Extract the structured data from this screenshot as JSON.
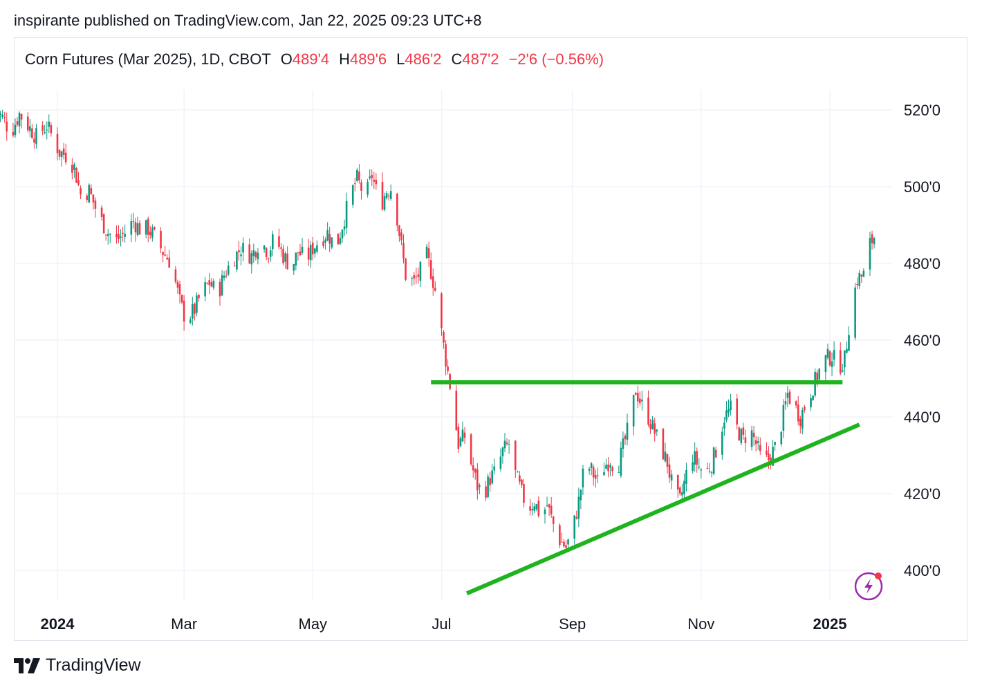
{
  "publisher_line": "inspirante published on TradingView.com, Jan 22, 2025 09:23 UTC+8",
  "legend": {
    "symbol": "Corn Futures (Mar 2025), 1D, CBOT",
    "open_label": "O",
    "open": "489'4",
    "high_label": "H",
    "high": "489'6",
    "low_label": "L",
    "low": "486'2",
    "close_label": "C",
    "close": "487'2",
    "change": "−2'6 (−0.56%)"
  },
  "colors": {
    "up": "#089981",
    "down": "#f23645",
    "trendline": "#1fb41f",
    "grid": "#f0f3fa",
    "axis_text": "#131722",
    "badge": "#9c27b0",
    "badge_dot": "#f23645"
  },
  "footer": {
    "brand": "TradingView",
    "logo_icon": "tradingview-logo-icon"
  },
  "badge_icon": "lightning-icon",
  "chart_data": {
    "type": "candlestick",
    "price_axis_labels": [
      "520'0",
      "500'0",
      "480'0",
      "460'0",
      "440'0",
      "420'0",
      "400'0"
    ],
    "price_axis_values": [
      520,
      500,
      480,
      460,
      440,
      420,
      400
    ],
    "time_axis_labels": [
      {
        "label": "2024",
        "date": "2024-01-01",
        "bold": true
      },
      {
        "label": "Mar",
        "date": "2024-03-01",
        "bold": false
      },
      {
        "label": "May",
        "date": "2024-05-01",
        "bold": false
      },
      {
        "label": "Jul",
        "date": "2024-07-01",
        "bold": false
      },
      {
        "label": "Sep",
        "date": "2024-09-01",
        "bold": false
      },
      {
        "label": "Nov",
        "date": "2024-11-01",
        "bold": false
      },
      {
        "label": "2025",
        "date": "2025-01-01",
        "bold": true
      }
    ],
    "ylim": [
      388,
      530
    ],
    "xlim": [
      "2023-12-01",
      "2025-02-10"
    ],
    "path": [
      [
        "2023-12-01",
        521
      ],
      [
        "2023-12-06",
        518
      ],
      [
        "2023-12-10",
        514
      ],
      [
        "2023-12-14",
        519
      ],
      [
        "2023-12-18",
        516
      ],
      [
        "2023-12-22",
        513
      ],
      [
        "2023-12-27",
        516
      ],
      [
        "2024-01-02",
        509
      ],
      [
        "2024-01-06",
        508
      ],
      [
        "2024-01-09",
        505
      ],
      [
        "2024-01-12",
        498
      ],
      [
        "2024-01-16",
        499
      ],
      [
        "2024-01-20",
        493
      ],
      [
        "2024-01-25",
        488
      ],
      [
        "2024-01-29",
        486
      ],
      [
        "2024-02-02",
        488
      ],
      [
        "2024-02-06",
        491
      ],
      [
        "2024-02-09",
        489
      ],
      [
        "2024-02-13",
        489
      ],
      [
        "2024-02-16",
        487
      ],
      [
        "2024-02-20",
        483
      ],
      [
        "2024-02-24",
        480
      ],
      [
        "2024-02-28",
        470
      ],
      [
        "2024-03-02",
        465
      ],
      [
        "2024-03-06",
        468
      ],
      [
        "2024-03-09",
        472
      ],
      [
        "2024-03-13",
        475
      ],
      [
        "2024-03-17",
        472
      ],
      [
        "2024-03-20",
        477
      ],
      [
        "2024-03-24",
        481
      ],
      [
        "2024-03-28",
        484
      ],
      [
        "2024-04-02",
        482
      ],
      [
        "2024-04-06",
        486
      ],
      [
        "2024-04-10",
        483
      ],
      [
        "2024-04-13",
        487
      ],
      [
        "2024-04-17",
        482
      ],
      [
        "2024-04-21",
        479
      ],
      [
        "2024-04-24",
        483
      ],
      [
        "2024-04-28",
        481
      ],
      [
        "2024-05-01",
        484
      ],
      [
        "2024-05-04",
        486
      ],
      [
        "2024-05-08",
        488
      ],
      [
        "2024-05-12",
        484
      ],
      [
        "2024-05-15",
        490
      ],
      [
        "2024-05-19",
        498
      ],
      [
        "2024-05-22",
        502
      ],
      [
        "2024-05-26",
        497
      ],
      [
        "2024-05-29",
        503
      ],
      [
        "2024-06-02",
        495
      ],
      [
        "2024-06-05",
        499
      ],
      [
        "2024-06-08",
        500
      ],
      [
        "2024-06-11",
        488
      ],
      [
        "2024-06-14",
        477
      ],
      [
        "2024-06-18",
        475
      ],
      [
        "2024-06-21",
        478
      ],
      [
        "2024-06-24",
        482
      ],
      [
        "2024-06-26",
        478
      ],
      [
        "2024-06-28",
        473
      ],
      [
        "2024-07-01",
        462
      ],
      [
        "2024-07-03",
        455
      ],
      [
        "2024-07-06",
        445
      ],
      [
        "2024-07-09",
        433
      ],
      [
        "2024-07-12",
        435
      ],
      [
        "2024-07-15",
        428
      ],
      [
        "2024-07-18",
        422
      ],
      [
        "2024-07-21",
        420
      ],
      [
        "2024-07-24",
        424
      ],
      [
        "2024-07-27",
        426
      ],
      [
        "2024-07-30",
        431
      ],
      [
        "2024-08-02",
        433
      ],
      [
        "2024-08-05",
        425
      ],
      [
        "2024-08-08",
        420
      ],
      [
        "2024-08-11",
        416
      ],
      [
        "2024-08-14",
        418
      ],
      [
        "2024-08-17",
        414
      ],
      [
        "2024-08-20",
        417
      ],
      [
        "2024-08-23",
        412
      ],
      [
        "2024-08-26",
        408
      ],
      [
        "2024-08-29",
        406
      ],
      [
        "2024-09-01",
        410
      ],
      [
        "2024-09-04",
        418
      ],
      [
        "2024-09-07",
        428
      ],
      [
        "2024-09-10",
        426
      ],
      [
        "2024-09-13",
        423
      ],
      [
        "2024-09-16",
        427
      ],
      [
        "2024-09-19",
        429
      ],
      [
        "2024-09-22",
        426
      ],
      [
        "2024-09-25",
        432
      ],
      [
        "2024-09-28",
        438
      ],
      [
        "2024-10-01",
        447
      ],
      [
        "2024-10-04",
        443
      ],
      [
        "2024-10-07",
        440
      ],
      [
        "2024-10-10",
        436
      ],
      [
        "2024-10-13",
        432
      ],
      [
        "2024-10-16",
        428
      ],
      [
        "2024-10-19",
        420
      ],
      [
        "2024-10-22",
        418
      ],
      [
        "2024-10-25",
        425
      ],
      [
        "2024-10-28",
        430
      ],
      [
        "2024-10-31",
        427
      ],
      [
        "2024-11-03",
        425
      ],
      [
        "2024-11-06",
        428
      ],
      [
        "2024-11-09",
        433
      ],
      [
        "2024-11-12",
        440
      ],
      [
        "2024-11-15",
        442
      ],
      [
        "2024-11-18",
        437
      ],
      [
        "2024-11-21",
        434
      ],
      [
        "2024-11-24",
        437
      ],
      [
        "2024-11-27",
        433
      ],
      [
        "2024-11-30",
        428
      ],
      [
        "2024-12-03",
        429
      ],
      [
        "2024-12-06",
        432
      ],
      [
        "2024-12-09",
        438
      ],
      [
        "2024-12-12",
        446
      ],
      [
        "2024-12-15",
        443
      ],
      [
        "2024-12-18",
        440
      ],
      [
        "2024-12-21",
        444
      ],
      [
        "2024-12-24",
        448
      ],
      [
        "2024-12-27",
        452
      ],
      [
        "2024-12-30",
        455
      ],
      [
        "2025-01-02",
        456
      ],
      [
        "2025-01-05",
        453
      ],
      [
        "2025-01-08",
        455
      ],
      [
        "2025-01-11",
        468
      ],
      [
        "2025-01-14",
        476
      ],
      [
        "2025-01-17",
        477
      ],
      [
        "2025-01-20",
        485
      ],
      [
        "2025-01-22",
        487
      ]
    ],
    "drawings": [
      {
        "name": "resistance-line",
        "from": [
          "2024-06-26",
          449
        ],
        "to": [
          "2025-01-07",
          449
        ]
      },
      {
        "name": "rising-support-line",
        "from": [
          "2024-07-13",
          394
        ],
        "to": [
          "2025-01-15",
          438
        ]
      }
    ]
  }
}
